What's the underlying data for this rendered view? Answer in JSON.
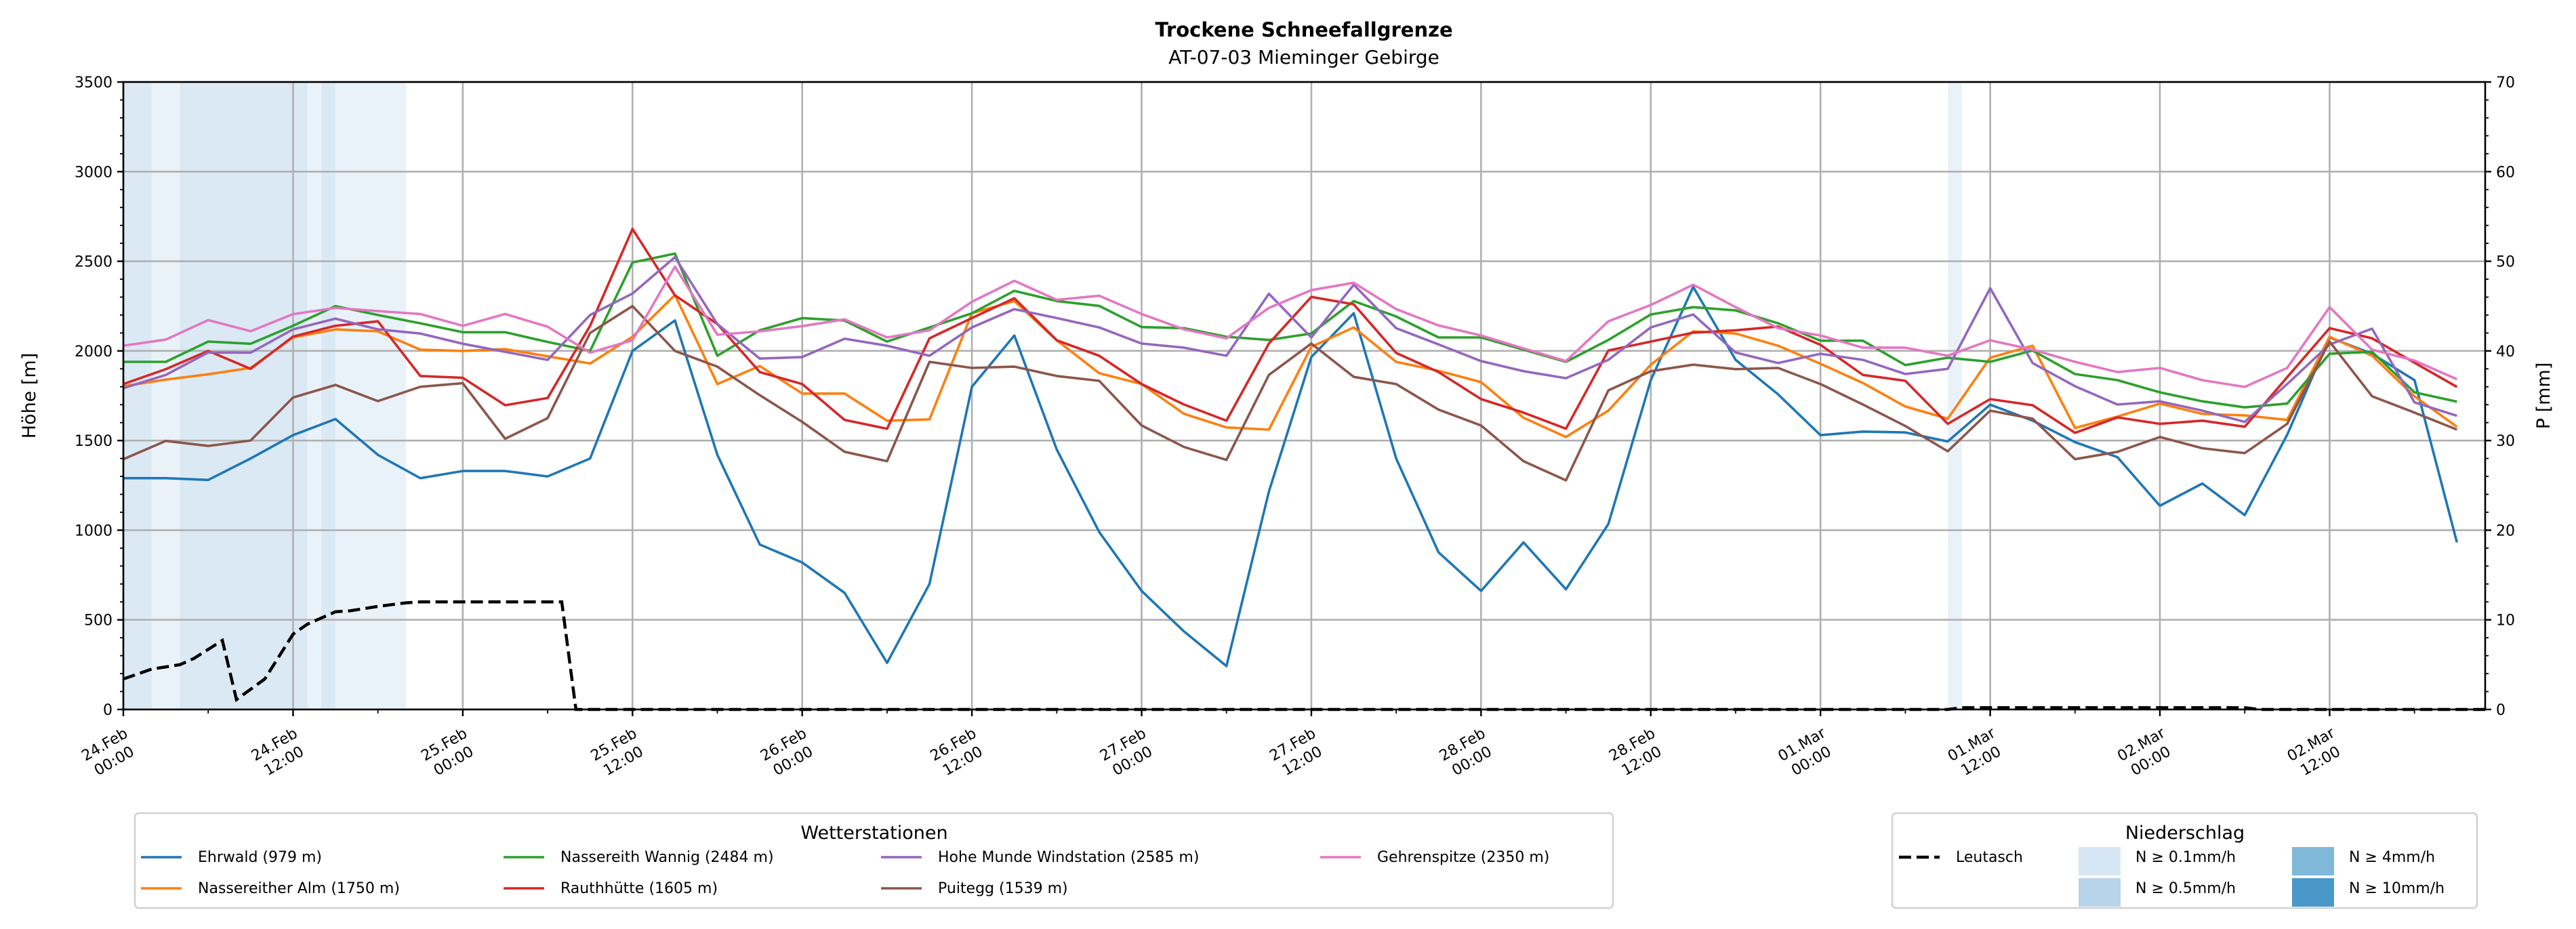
{
  "chart_data": {
    "type": "line",
    "title": "Trockene Schneefallgrenze",
    "subtitle": "AT-07-03 Mieminger Gebirge",
    "ylabel": "Höhe [m]",
    "y2label": "P [mm]",
    "ylim": [
      0,
      3500
    ],
    "y2lim": [
      0,
      70
    ],
    "xlim_hours": [
      0,
      167
    ],
    "x_unit": "hours since 24.Feb 00:00",
    "grid": true,
    "yticks": [
      0,
      500,
      1000,
      1500,
      2000,
      2500,
      3000,
      3500
    ],
    "y2ticks": [
      0,
      10,
      20,
      30,
      40,
      50,
      60,
      70
    ],
    "xticks": [
      {
        "hour": 0,
        "date": "24.Feb",
        "time": "00:00"
      },
      {
        "hour": 12,
        "date": "24.Feb",
        "time": "12:00"
      },
      {
        "hour": 24,
        "date": "25.Feb",
        "time": "00:00"
      },
      {
        "hour": 36,
        "date": "25.Feb",
        "time": "12:00"
      },
      {
        "hour": 48,
        "date": "26.Feb",
        "time": "00:00"
      },
      {
        "hour": 60,
        "date": "26.Feb",
        "time": "12:00"
      },
      {
        "hour": 72,
        "date": "27.Feb",
        "time": "00:00"
      },
      {
        "hour": 84,
        "date": "27.Feb",
        "time": "12:00"
      },
      {
        "hour": 96,
        "date": "28.Feb",
        "time": "00:00"
      },
      {
        "hour": 108,
        "date": "28.Feb",
        "time": "12:00"
      },
      {
        "hour": 120,
        "date": "01.Mar",
        "time": "00:00"
      },
      {
        "hour": 132,
        "date": "01.Mar",
        "time": "12:00"
      },
      {
        "hour": 144,
        "date": "02.Mar",
        "time": "00:00"
      },
      {
        "hour": 156,
        "date": "02.Mar",
        "time": "12:00"
      }
    ],
    "x": [
      0,
      3,
      6,
      9,
      12,
      15,
      18,
      21,
      24,
      27,
      30,
      33,
      36,
      39,
      42,
      45,
      48,
      51,
      54,
      57,
      60,
      63,
      66,
      69,
      72,
      75,
      78,
      81,
      84,
      87,
      90,
      93,
      96,
      99,
      102,
      105,
      108,
      111,
      114,
      117,
      120,
      123,
      126,
      129,
      132,
      135,
      138,
      141,
      144,
      147,
      150,
      153,
      156,
      159,
      162,
      165
    ],
    "series": [
      {
        "name": "Ehrwald (979 m)",
        "color": "#1f77b4",
        "values": [
          1290,
          1290,
          1280,
          1400,
          1530,
          1620,
          1420,
          1290,
          1330,
          1330,
          1300,
          1400,
          2000,
          2170,
          1420,
          920,
          820,
          650,
          260,
          700,
          1800,
          2086,
          1450,
          990,
          661,
          435,
          242,
          1215,
          1966,
          2210,
          1400,
          876,
          661,
          932,
          670,
          1034,
          1837,
          2357,
          1950,
          1758,
          1530,
          1550,
          1545,
          1495,
          1700,
          1611,
          1491,
          1407,
          1136,
          1260,
          1084,
          1532,
          2075,
          1984,
          1837,
          932
        ]
      },
      {
        "name": "Nassereither Alm (1750 m)",
        "color": "#ff7f0e",
        "values": [
          1803,
          1840,
          1870,
          1905,
          2075,
          2120,
          2109,
          2007,
          2000,
          2010,
          1970,
          1930,
          2079,
          2312,
          1815,
          1916,
          1762,
          1762,
          1611,
          1618,
          2210,
          2278,
          2059,
          1876,
          1815,
          1649,
          1573,
          1561,
          2023,
          2131,
          1939,
          1889,
          1826,
          1627,
          1520,
          1667,
          1923,
          2109,
          2097,
          2029,
          1928,
          1821,
          1690,
          1622,
          1962,
          2029,
          1570,
          1634,
          1706,
          1649,
          1640,
          1615,
          2079,
          1973,
          1747,
          1577
        ]
      },
      {
        "name": "Nassereith Wannig (2484 m)",
        "color": "#2ca02c",
        "values": [
          1939,
          1939,
          2052,
          2040,
          2140,
          2250,
          2200,
          2154,
          2104,
          2104,
          2050,
          2000,
          2493,
          2543,
          1973,
          2115,
          2183,
          2169,
          2052,
          2131,
          2210,
          2335,
          2278,
          2251,
          2133,
          2127,
          2079,
          2061,
          2097,
          2278,
          2192,
          2075,
          2075,
          2007,
          1939,
          2061,
          2203,
          2244,
          2226,
          2154,
          2057,
          2057,
          1921,
          1962,
          1939,
          2002,
          1871,
          1837,
          1769,
          1719,
          1685,
          1706,
          1984,
          1995,
          1769,
          1717
        ]
      },
      {
        "name": "Rauthhütte (1605 m)",
        "color": "#d62728",
        "values": [
          1815,
          1898,
          2000,
          1900,
          2080,
          2140,
          2165,
          1860,
          1850,
          1697,
          1737,
          2140,
          2680,
          2310,
          2150,
          1882,
          1815,
          1615,
          1566,
          2070,
          2183,
          2294,
          2059,
          1973,
          1815,
          1701,
          1611,
          2041,
          2301,
          2260,
          1989,
          1882,
          1731,
          1656,
          1566,
          2002,
          2052,
          2102,
          2115,
          2136,
          2034,
          1866,
          1833,
          1593,
          1731,
          1697,
          1543,
          1629,
          1593,
          1611,
          1577,
          1853,
          2127,
          2070,
          1934,
          1799
        ]
      },
      {
        "name": "Hohe Munde Windstation (2585 m)",
        "color": "#9467bd",
        "values": [
          1792,
          1866,
          1991,
          1990,
          2120,
          2180,
          2120,
          2097,
          2040,
          1995,
          1950,
          2200,
          2320,
          2523,
          2150,
          1957,
          1966,
          2068,
          2029,
          1973,
          2131,
          2233,
          2183,
          2131,
          2041,
          2018,
          1973,
          2319,
          2075,
          2369,
          2127,
          2036,
          1943,
          1887,
          1848,
          1950,
          2131,
          2203,
          1991,
          1932,
          1984,
          1950,
          1871,
          1900,
          2350,
          1932,
          1803,
          1701,
          1719,
          1667,
          1604,
          1815,
          2036,
          2124,
          1713,
          1638
        ]
      },
      {
        "name": "Puitegg (1539 m)",
        "color": "#8c564b",
        "values": [
          1396,
          1498,
          1470,
          1500,
          1740,
          1810,
          1720,
          1800,
          1820,
          1510,
          1625,
          2100,
          2250,
          2000,
          1912,
          1753,
          1604,
          1437,
          1385,
          1939,
          1905,
          1912,
          1860,
          1833,
          1584,
          1464,
          1392,
          1866,
          2041,
          1855,
          1815,
          1672,
          1584,
          1385,
          1278,
          1780,
          1887,
          1923,
          1898,
          1905,
          1815,
          1701,
          1581,
          1440,
          1667,
          1622,
          1396,
          1437,
          1520,
          1457,
          1430,
          1593,
          2052,
          1747,
          1656,
          1561
        ]
      },
      {
        "name": "Gehrenspitze (2350 m)",
        "color": "#e377c2",
        "values": [
          2029,
          2063,
          2172,
          2110,
          2205,
          2240,
          2222,
          2206,
          2140,
          2206,
          2135,
          1990,
          2060,
          2470,
          2090,
          2109,
          2138,
          2176,
          2075,
          2115,
          2274,
          2391,
          2285,
          2308,
          2206,
          2120,
          2070,
          2240,
          2339,
          2380,
          2233,
          2142,
          2086,
          2014,
          1943,
          2165,
          2256,
          2369,
          2244,
          2127,
          2086,
          2018,
          2018,
          1973,
          2059,
          2007,
          1939,
          1882,
          1905,
          1837,
          1799,
          1905,
          2244,
          2007,
          1946,
          1842
        ]
      }
    ],
    "precipitation": {
      "name": "Leutasch",
      "color": "#000000",
      "hours": [
        0,
        2,
        4,
        5,
        7,
        8,
        10,
        12,
        13,
        15,
        16,
        18,
        20,
        21,
        31,
        32,
        129,
        130,
        150,
        151,
        167
      ],
      "values_mm": [
        3.4,
        4.5,
        5.0,
        5.7,
        7.7,
        1.1,
        3.4,
        8.4,
        9.5,
        10.9,
        11.0,
        11.5,
        11.9,
        12.0,
        12.0,
        0,
        0,
        0.2,
        0.2,
        0,
        0
      ]
    },
    "precip_bands": [
      {
        "start": 0,
        "end": 2,
        "level": 1
      },
      {
        "start": 2,
        "end": 4,
        "level": 0
      },
      {
        "start": 4,
        "end": 13,
        "level": 1
      },
      {
        "start": 13,
        "end": 14,
        "level": 0
      },
      {
        "start": 14,
        "end": 15,
        "level": 1
      },
      {
        "start": 15,
        "end": 20,
        "level": 0
      },
      {
        "start": 129,
        "end": 130,
        "level": 0
      }
    ],
    "precip_levels": [
      {
        "label": "N ≥ 0.1mm/h",
        "color": "#d6e6f4"
      },
      {
        "label": "N ≥ 0.5mm/h",
        "color": "#b8d4ea"
      },
      {
        "label": "N ≥ 4mm/h",
        "color": "#80b8da"
      },
      {
        "label": "N ≥ 10mm/h",
        "color": "#4a98c9"
      }
    ],
    "legend_stations_title": "Wetterstationen",
    "legend_precip_title": "Niederschlag",
    "legend_placement": "bottom"
  }
}
